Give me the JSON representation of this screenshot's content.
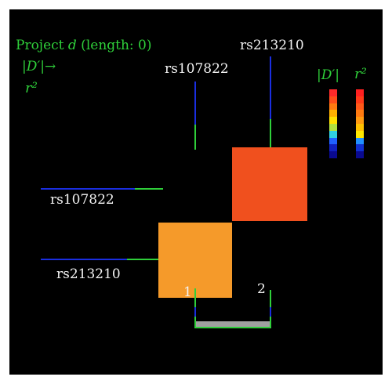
{
  "title": {
    "prefix": "Project ",
    "var": "d",
    "suffix": " (length: 0)"
  },
  "mapping": {
    "dprime": "|D′|→",
    "r2": "r²"
  },
  "snps": {
    "snp1": "rs107822",
    "snp2": "rs213210"
  },
  "positions": {
    "p1": "1",
    "p2": "2"
  },
  "legend": {
    "dprime_label": "|D′|",
    "r2_label": "r²",
    "dprime_colors": [
      "#ff2a2a",
      "#ff4d1a",
      "#ff7a10",
      "#ffb000",
      "#ffe000",
      "#b0e040",
      "#30d0e0",
      "#2060ff",
      "#1020c0",
      "#0a0a90"
    ],
    "r2_colors": [
      "#ff2020",
      "#ff3a18",
      "#ff5818",
      "#ff7a10",
      "#ff9a10",
      "#ffc000",
      "#ffe800",
      "#2090ff",
      "#1030d0",
      "#0a0a90"
    ]
  },
  "blocks": {
    "pair_2_1_color": "#f0501e",
    "pair_1_2_color": "#f59a2a"
  },
  "colors": {
    "background": "#000000",
    "green": "#2fcf3a",
    "blue": "#1a2ee0",
    "gray_track": "#a0a0a0"
  }
}
